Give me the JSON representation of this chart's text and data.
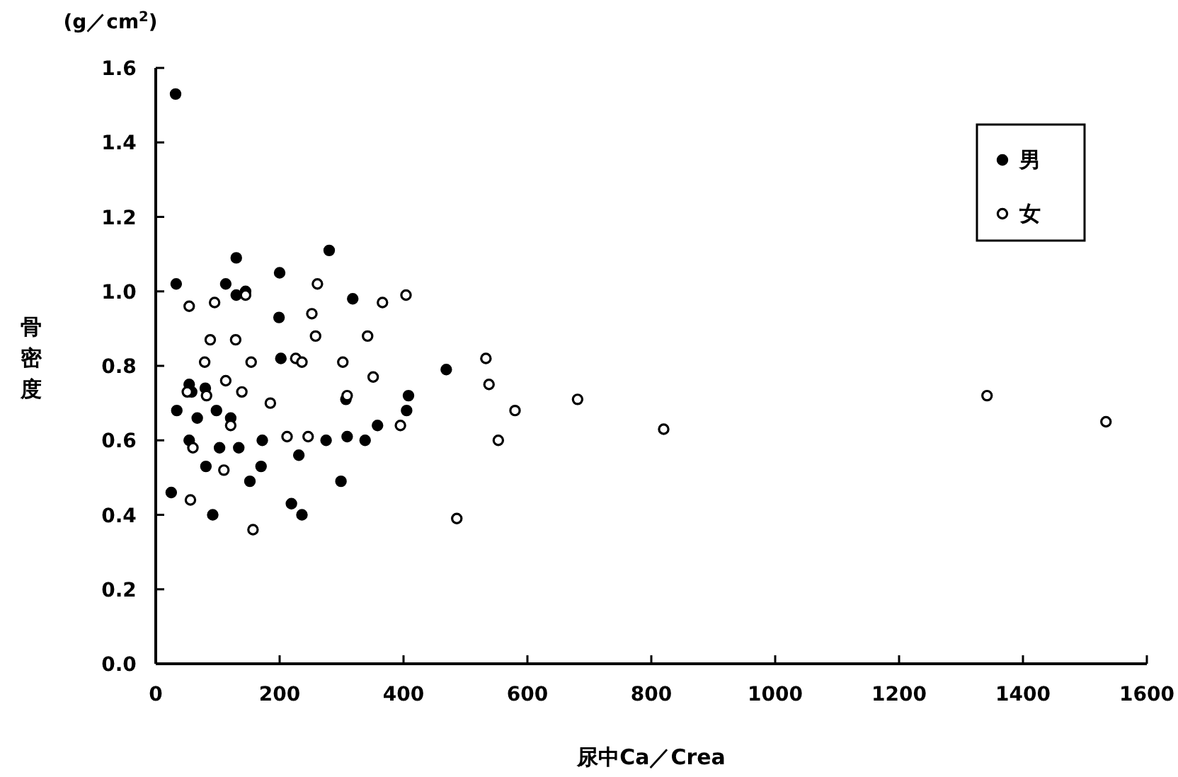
{
  "chart_data": {
    "type": "scatter",
    "xlabel": "尿中Ca／Crea",
    "ylabel": "骨密度",
    "annotations": [
      "(g／cm$^{2}$)"
    ],
    "xlim": [
      0,
      1600
    ],
    "xticks": [
      0,
      200,
      400,
      600,
      800,
      1000,
      1200,
      1400,
      1600
    ],
    "ylim": [
      0,
      1.6
    ],
    "yticks": [
      {
        "value": 0,
        "label": "0.0"
      },
      {
        "value": 0.2,
        "label": "0.2"
      },
      {
        "value": 0.4,
        "label": "0.4"
      },
      {
        "value": 0.6,
        "label": "0.6"
      },
      {
        "value": 0.8,
        "label": "0.8"
      },
      {
        "value": 1,
        "label": "1.0"
      },
      {
        "value": 1.2,
        "label": "1.2"
      },
      {
        "value": 1.4,
        "label": "1.4"
      },
      {
        "value": 1.6,
        "label": "1.6"
      }
    ],
    "marker": "circle",
    "legend": "top right",
    "grid": false,
    "series": [
      {
        "name": "男",
        "color": "#000000",
        "x": [
          32,
          33,
          130,
          280,
          113,
          200,
          130,
          145,
          318,
          199,
          202,
          469,
          54,
          58,
          80,
          307,
          408,
          405,
          34,
          67,
          98,
          121,
          358,
          54,
          103,
          134,
          172,
          275,
          309,
          338,
          231,
          81,
          170,
          152,
          299,
          25,
          219,
          92,
          236
        ],
        "values": [
          1.53,
          1.02,
          1.09,
          1.11,
          1.02,
          1.05,
          0.99,
          1.0,
          0.98,
          0.93,
          0.82,
          0.79,
          0.75,
          0.73,
          0.74,
          0.71,
          0.72,
          0.68,
          0.68,
          0.66,
          0.68,
          0.66,
          0.64,
          0.6,
          0.58,
          0.58,
          0.6,
          0.6,
          0.61,
          0.6,
          0.56,
          0.53,
          0.53,
          0.49,
          0.49,
          0.46,
          0.43,
          0.4,
          0.4
        ]
      },
      {
        "name": "女",
        "color": "#ffffff",
        "x": [
          145,
          261,
          366,
          404,
          54,
          95,
          252,
          88,
          129,
          258,
          342,
          79,
          154,
          226,
          236,
          302,
          351,
          51,
          82,
          113,
          139,
          309,
          121,
          185,
          395,
          60,
          212,
          246,
          110,
          56,
          157,
          486,
          533,
          538,
          580,
          681,
          553,
          820,
          1342,
          1534
        ],
        "values": [
          0.99,
          1.02,
          0.97,
          0.99,
          0.96,
          0.97,
          0.94,
          0.87,
          0.87,
          0.88,
          0.88,
          0.81,
          0.81,
          0.82,
          0.81,
          0.81,
          0.77,
          0.73,
          0.72,
          0.76,
          0.73,
          0.72,
          0.64,
          0.7,
          0.64,
          0.58,
          0.61,
          0.61,
          0.52,
          0.44,
          0.36,
          0.39,
          0.82,
          0.75,
          0.68,
          0.71,
          0.6,
          0.63,
          0.72,
          0.65
        ]
      }
    ]
  }
}
